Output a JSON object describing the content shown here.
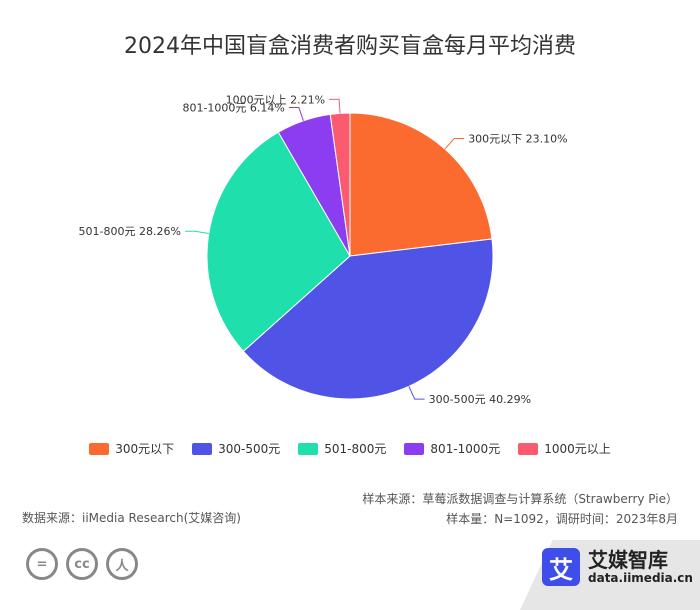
{
  "chart_data": {
    "type": "pie",
    "title": "2024年中国盲盒消费者购买盲盒每月平均消费",
    "categories": [
      "300元以下",
      "300-500元",
      "501-800元",
      "801-1000元",
      "1000元以上"
    ],
    "values": [
      23.1,
      40.29,
      28.26,
      6.14,
      2.21
    ],
    "data_labels": [
      "300元以下 23.10%",
      "300-500元 40.29%",
      "501-800元 28.26%",
      "801-1000元 6.14%",
      "1000元以上 2.21%"
    ],
    "colors": [
      "#fb6b2f",
      "#4f53e6",
      "#1fe0ad",
      "#8c3df0",
      "#fb5b6e"
    ],
    "legend_position": "bottom",
    "start_angle_deg": 0,
    "direction": "clockwise"
  },
  "footer": {
    "source_left": "数据来源：iiMedia Research(艾媒咨询)",
    "sample_source": "样本来源：草莓派数据调查与计算系统（Strawberry Pie）",
    "sample_info": "样本量：N=1092，调研时间：2023年8月"
  },
  "license_icons": [
    "equals-icon",
    "cc-icon",
    "person-icon"
  ],
  "license_glyphs": [
    "=",
    "cc",
    "人"
  ],
  "brand": {
    "logo_char": "艾",
    "name": "艾媒智库",
    "url": "data.iimedia.cn",
    "color": "#3f4ee8"
  }
}
